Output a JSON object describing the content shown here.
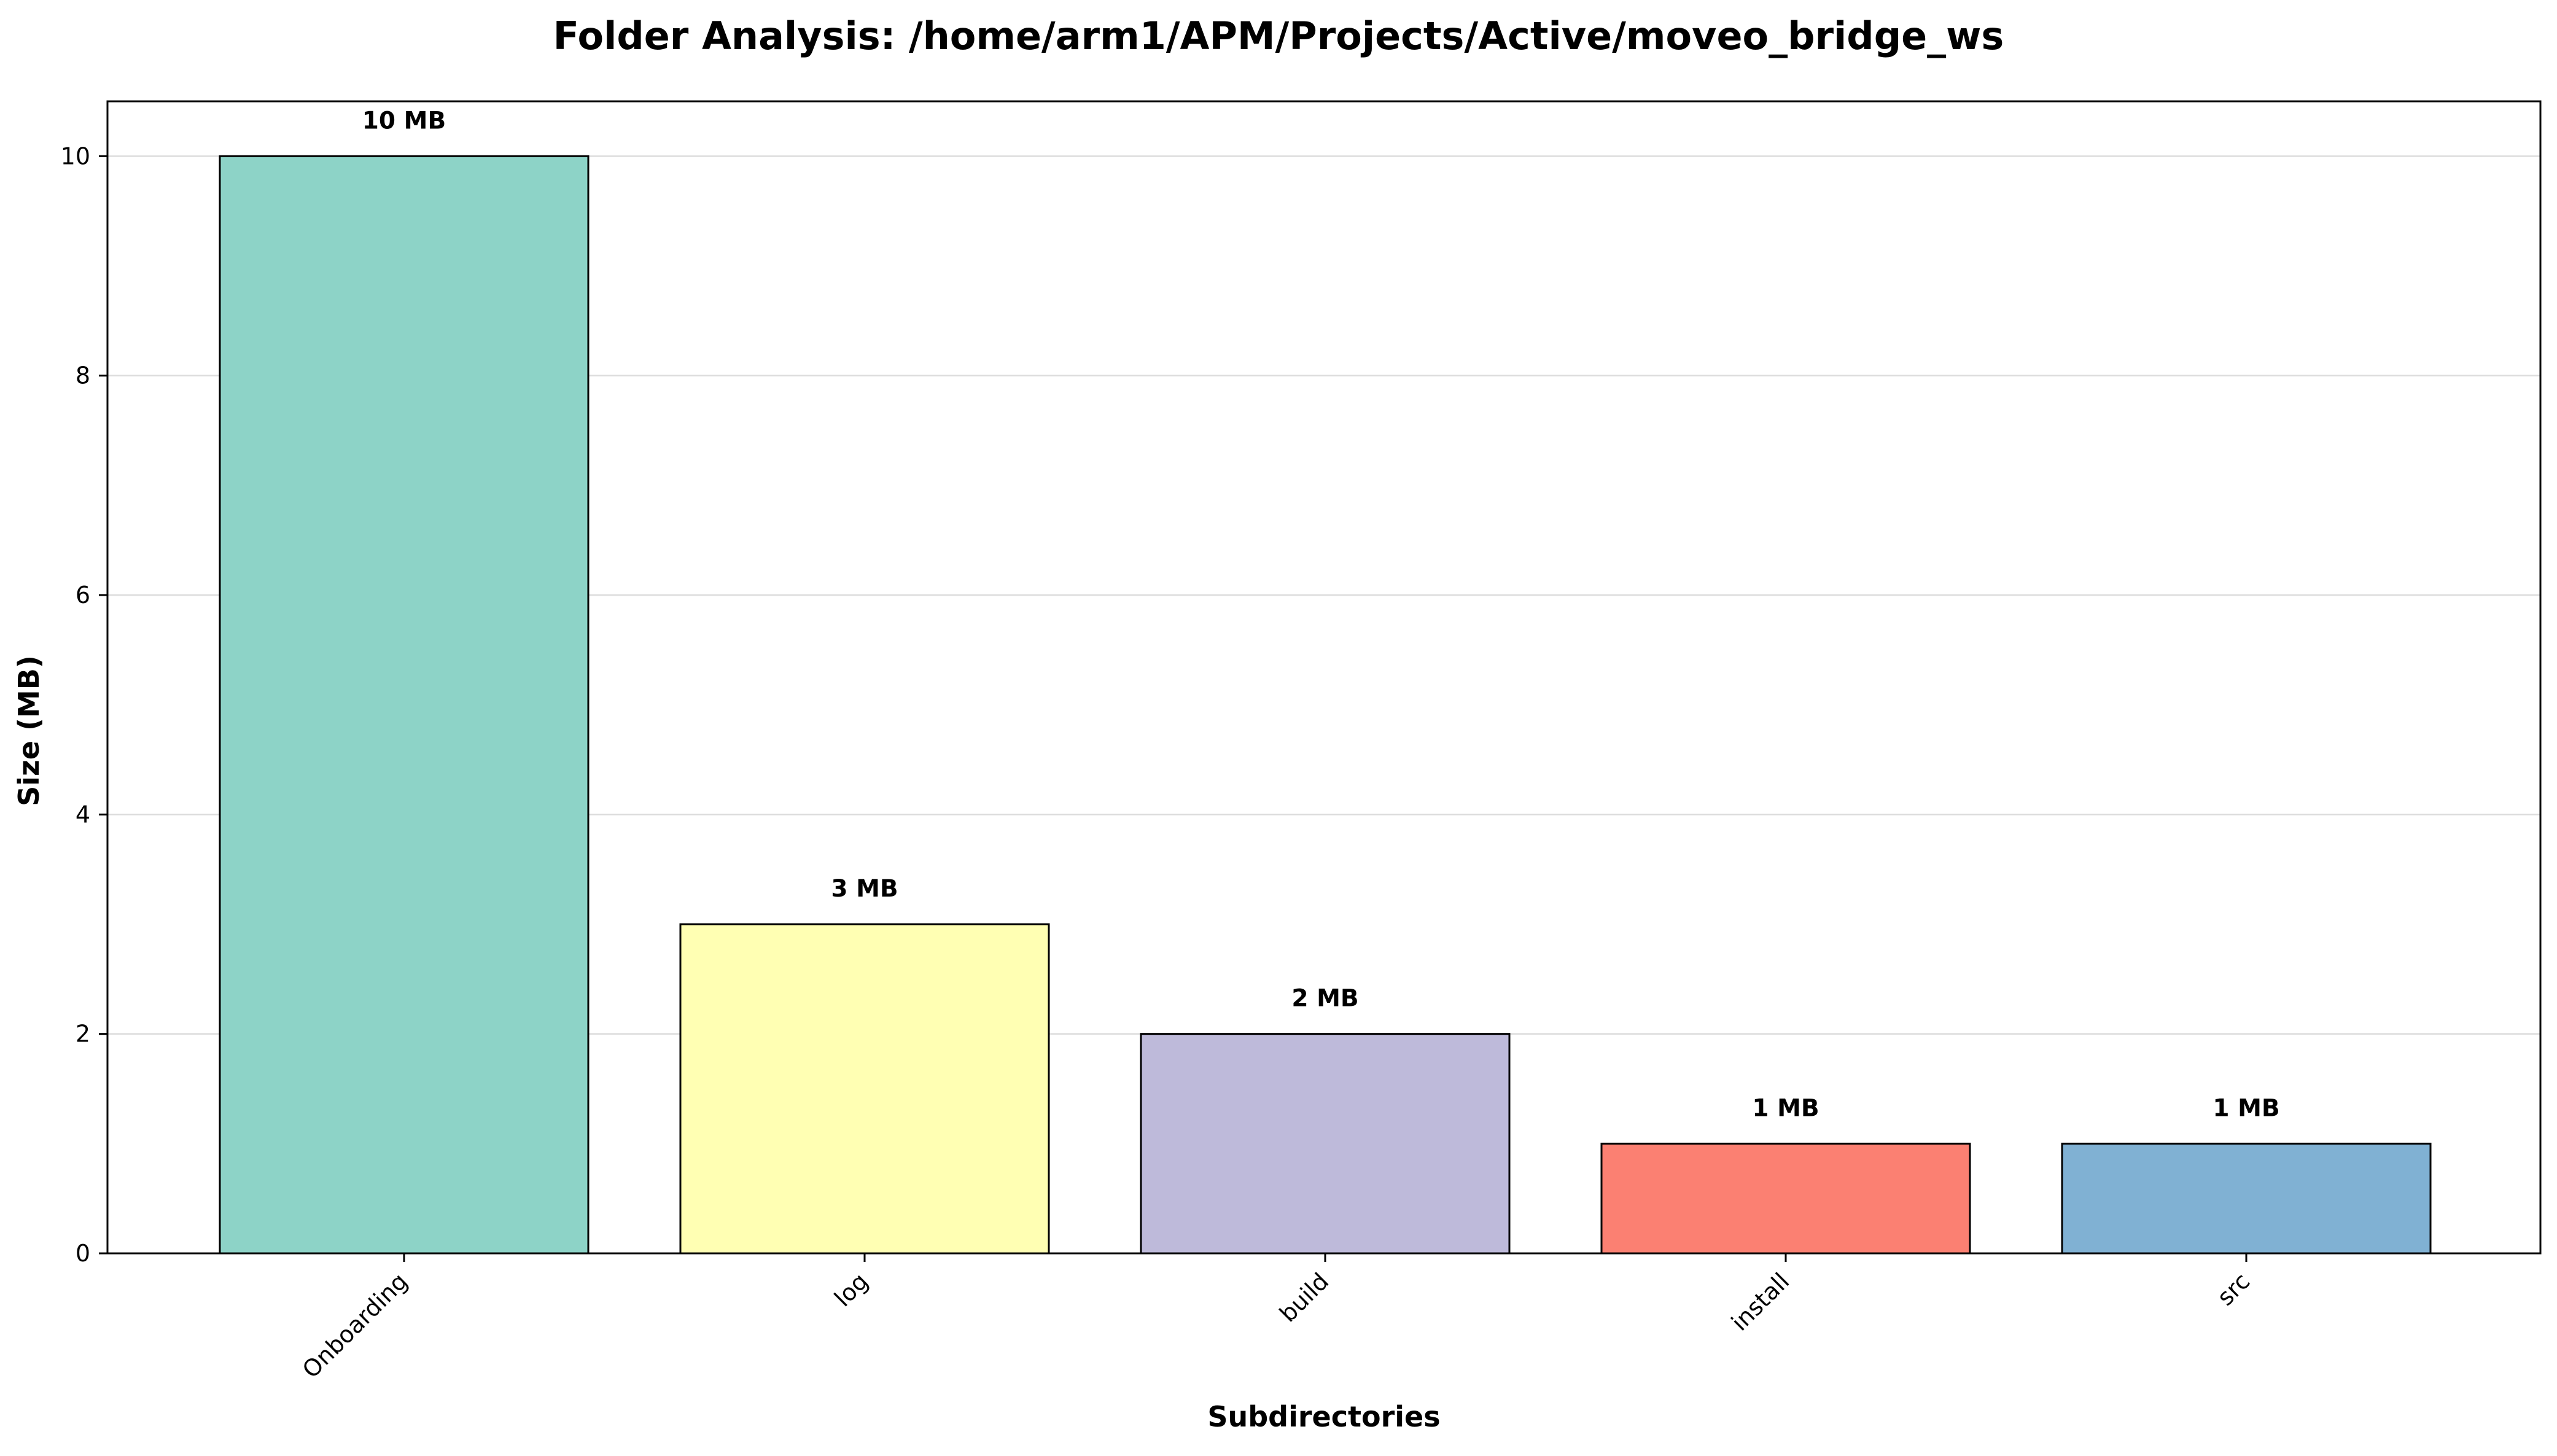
{
  "chart_data": {
    "type": "bar",
    "title": "Folder Analysis: /home/arm1/APM/Projects/Active/moveo_bridge_ws",
    "xlabel": "Subdirectories",
    "ylabel": "Size (MB)",
    "categories": [
      "Onboarding",
      "log",
      "build",
      "install",
      "src"
    ],
    "values": [
      10,
      3,
      2,
      1,
      1
    ],
    "data_labels": [
      "10 MB",
      "3 MB",
      "2 MB",
      "1 MB",
      "1 MB"
    ],
    "colors": [
      "#8dd3c7",
      "#ffffb3",
      "#bebada",
      "#fb8072",
      "#80b1d3"
    ],
    "yticks": [
      0,
      2,
      4,
      6,
      8,
      10
    ],
    "ylim": [
      0,
      10.5
    ],
    "grid": "y",
    "legend": "none"
  }
}
